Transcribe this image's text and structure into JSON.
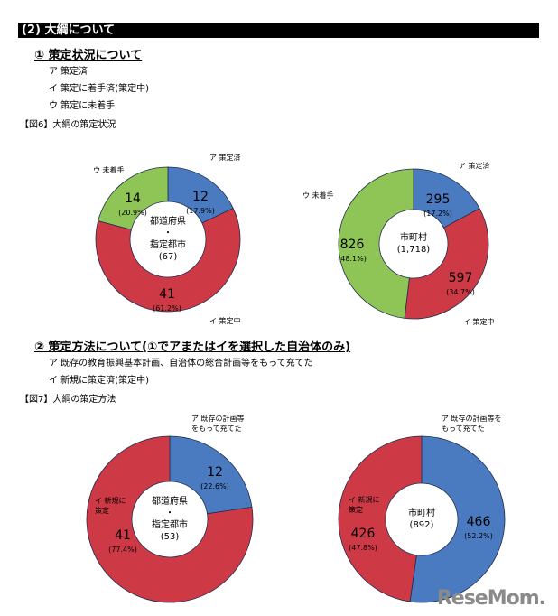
{
  "section_title": "(2) 大綱について",
  "sub1": {
    "title": "① 策定状況について",
    "items": [
      "ア 策定済",
      "イ 策定に着手済(策定中)",
      "ウ 策定に未着手"
    ]
  },
  "fig6_title": "【図6】大綱の策定状況",
  "sub2": {
    "title": "② 策定方法について(①でアまたはイを選択した自治体のみ)",
    "items": [
      "ア 既存の教育振興基本計画、自治体の総合計画等をもって充てた",
      "イ 新規に策定済(策定中)"
    ]
  },
  "fig7_title": "【図7】大綱の策定方法",
  "colors": {
    "blue": "#4a7bc1",
    "red": "#cd3a46",
    "green": "#8fc457"
  },
  "chart_data": [
    {
      "type": "pie",
      "variant": "donut",
      "center_label": [
        "都道府県",
        "・",
        "指定都市",
        "(67)"
      ],
      "slices": [
        {
          "label": "ア 策定済",
          "value": 12,
          "percent": "(17.9%)",
          "color": "blue"
        },
        {
          "label": "イ 策定中",
          "value": 41,
          "percent": "(61.2%)",
          "color": "red"
        },
        {
          "label": "ウ 未着手",
          "value": 14,
          "percent": "(20.9%)",
          "color": "green"
        }
      ]
    },
    {
      "type": "pie",
      "variant": "donut",
      "center_label": [
        "市町村",
        "(1,718)"
      ],
      "slices": [
        {
          "label": "ア 策定済",
          "value": 295,
          "percent": "(17.2%)",
          "color": "blue"
        },
        {
          "label": "イ 策定中",
          "value": 597,
          "percent": "(34.7%)",
          "color": "red"
        },
        {
          "label": "ウ 未着手",
          "value": 826,
          "percent": "(48.1%)",
          "color": "green"
        }
      ]
    },
    {
      "type": "pie",
      "variant": "donut",
      "center_label": [
        "都道府県",
        "・",
        "指定都市",
        "(53)"
      ],
      "slices": [
        {
          "label": "ア 既存の計画等\nをもって充てた",
          "value": 12,
          "percent": "(22.6%)",
          "color": "blue"
        },
        {
          "label": "イ 新規に\n策定",
          "value": 41,
          "percent": "(77.4%)",
          "color": "red"
        }
      ]
    },
    {
      "type": "pie",
      "variant": "donut",
      "center_label": [
        "市町村",
        "(892)"
      ],
      "slices": [
        {
          "label": "ア 既存の計画等を\nもって充てた",
          "value": 466,
          "percent": "(52.2%)",
          "color": "blue"
        },
        {
          "label": "イ 新規に\n策定",
          "value": 426,
          "percent": "(47.8%)",
          "color": "red"
        }
      ]
    }
  ],
  "watermark": "ReseMom"
}
